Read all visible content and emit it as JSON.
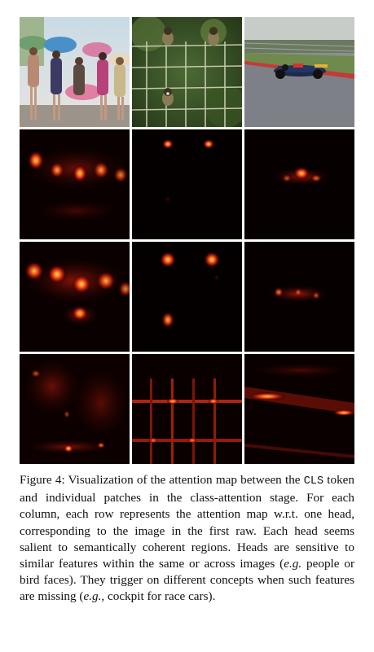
{
  "figure": {
    "rows": [
      {
        "kind": "input-images",
        "cells": [
          {
            "subject": "people with umbrellas"
          },
          {
            "subject": "birds on fence"
          },
          {
            "subject": "race car on track"
          }
        ]
      },
      {
        "kind": "attention-head",
        "cells": [
          {
            "subject": "people with umbrellas"
          },
          {
            "subject": "birds on fence"
          },
          {
            "subject": "race car on track"
          }
        ]
      },
      {
        "kind": "attention-head",
        "cells": [
          {
            "subject": "people with umbrellas"
          },
          {
            "subject": "birds on fence"
          },
          {
            "subject": "race car on track"
          }
        ]
      },
      {
        "kind": "attention-head",
        "cells": [
          {
            "subject": "people with umbrellas"
          },
          {
            "subject": "birds on fence"
          },
          {
            "subject": "race car on track"
          }
        ]
      }
    ],
    "colormap": {
      "low": "#000000",
      "mid": "#c81e0a",
      "high": "#ffe45a"
    }
  },
  "caption": {
    "label": "Figure 4:",
    "part1": "Visualization of the attention map between the",
    "token": "CLS",
    "part2": "token and individual patches in the class-attention stage. For each column, each row represents the attention map w.r.t. one head, corresponding to the image in the first raw. Each head seems salient to semantically coherent regions. Heads are sensitive to similar features within the same or across images (",
    "eg1": "e.g.",
    "part3": " people or bird faces). They trigger on different concepts when such features are missing (",
    "eg2": "e.g.",
    "part4": ", cockpit for race cars)."
  }
}
